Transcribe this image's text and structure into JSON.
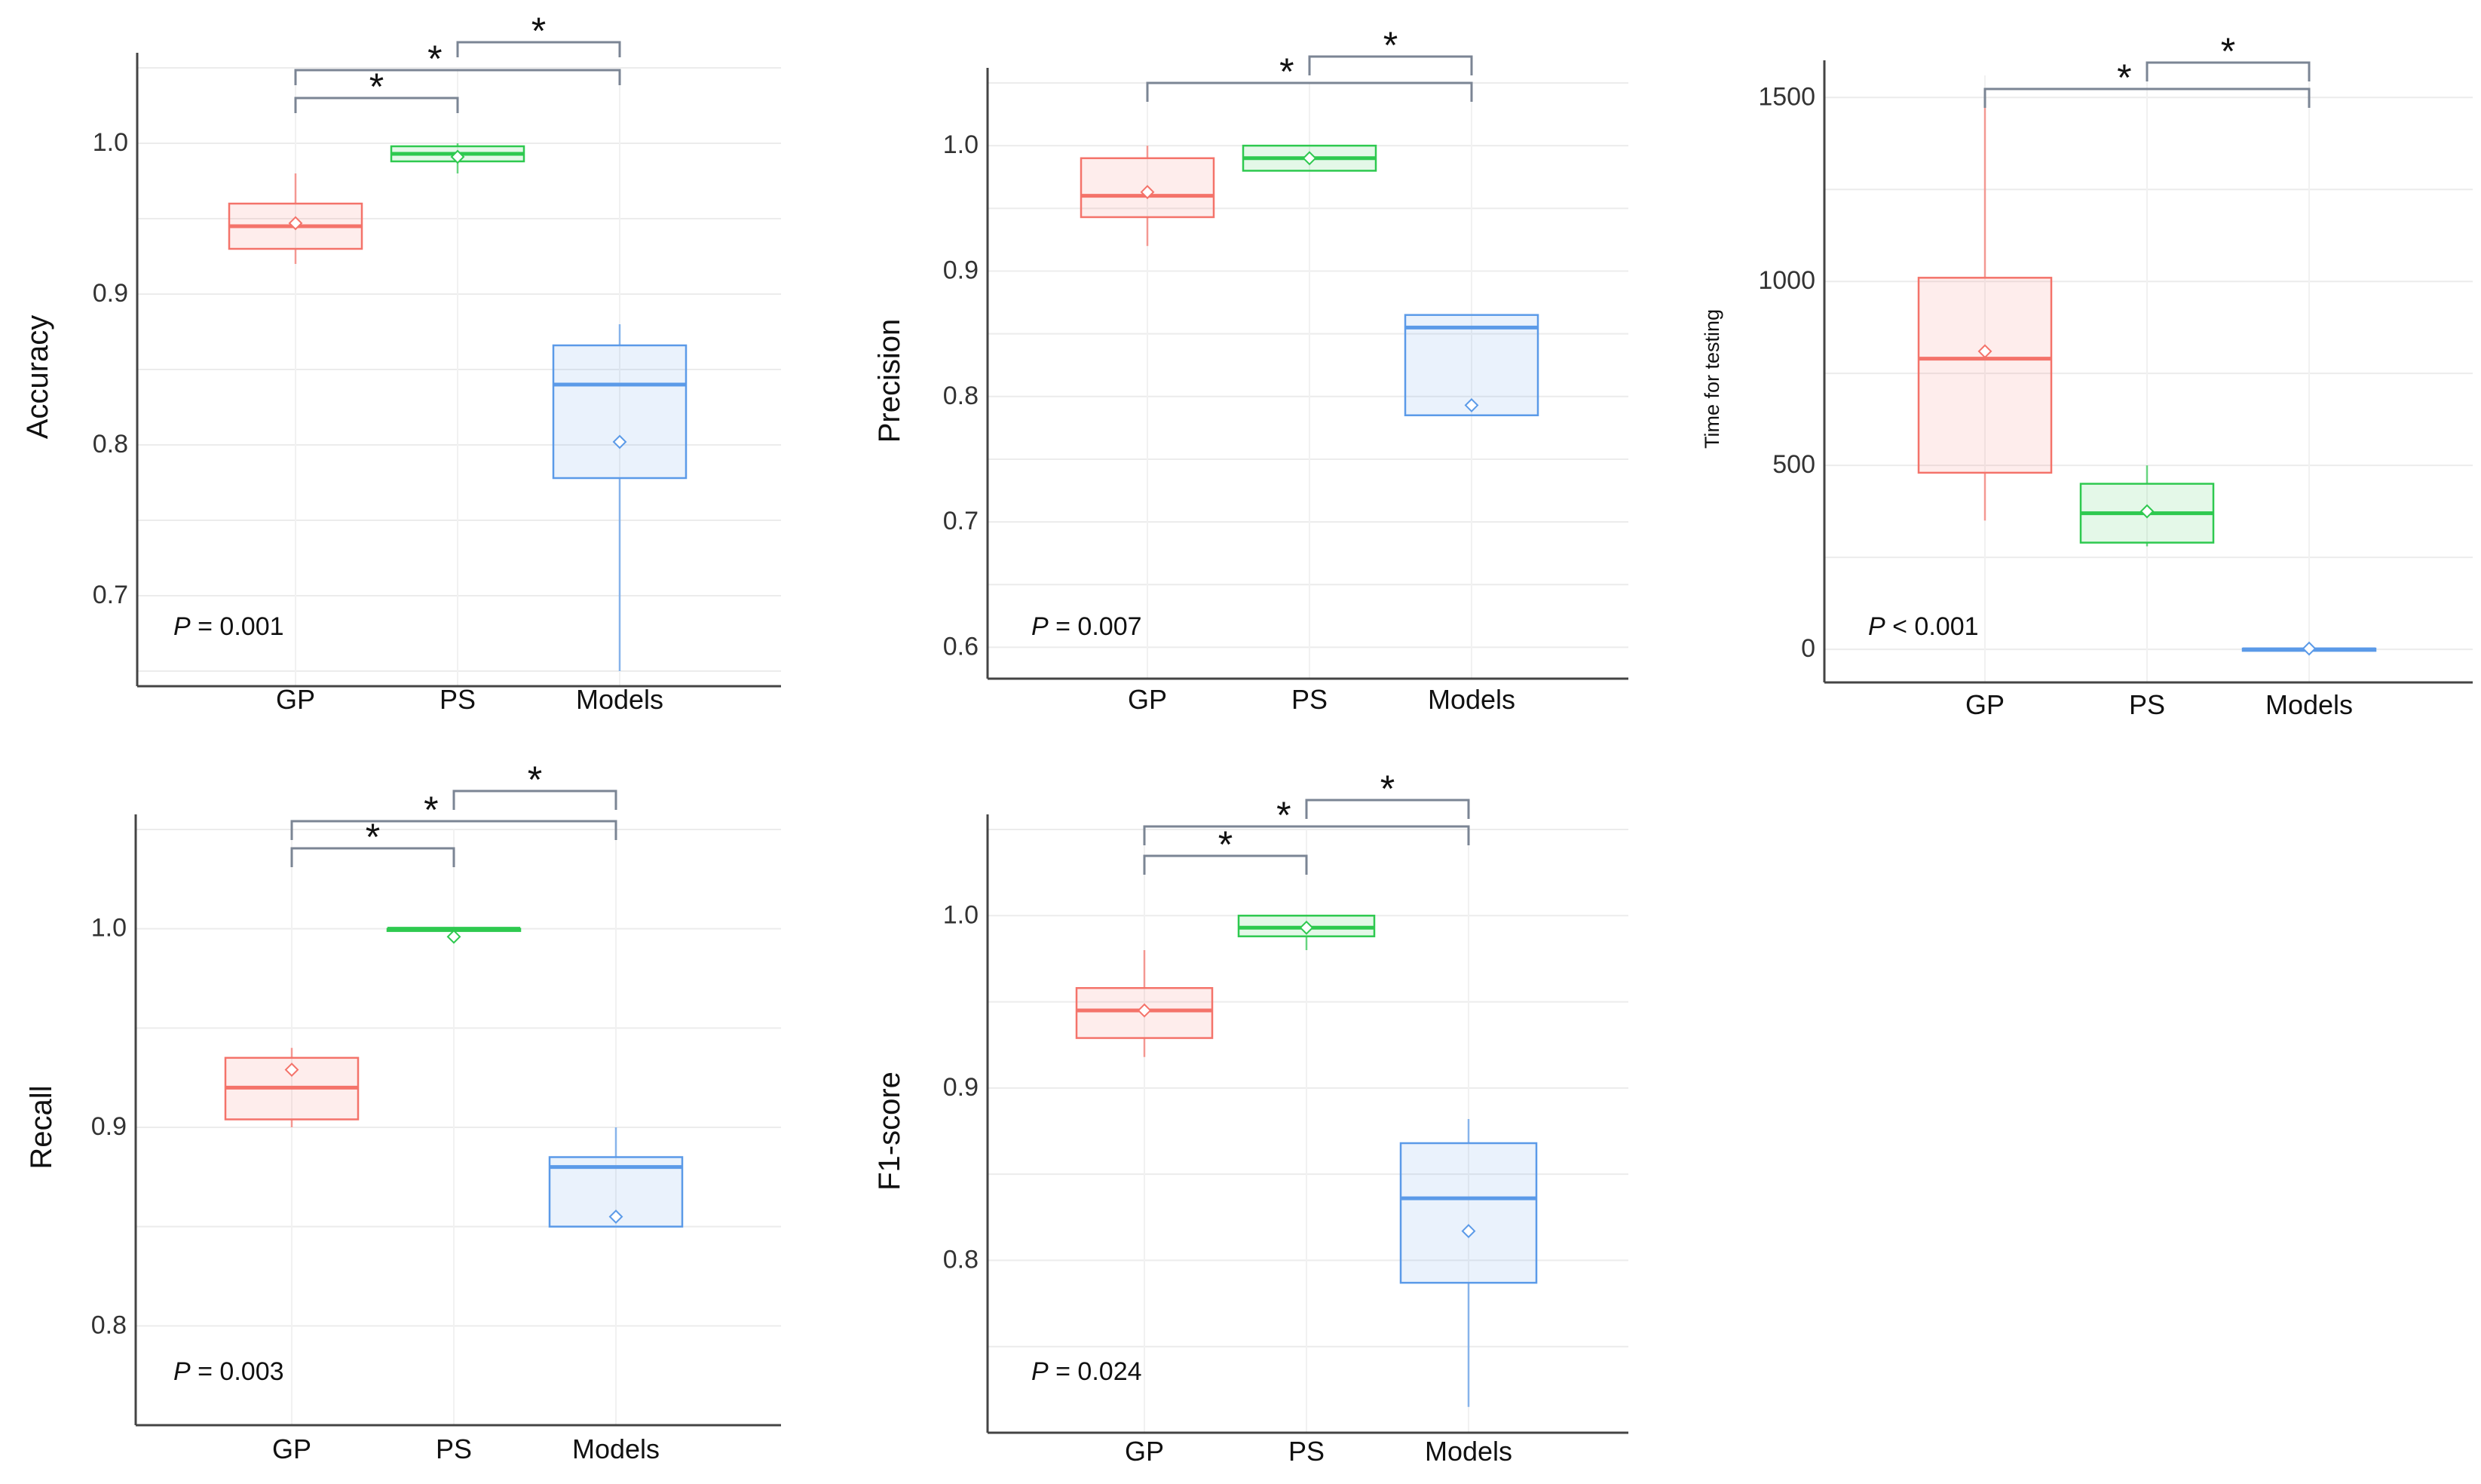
{
  "colors": {
    "GP": "#f4736a",
    "PS": "#2ec94f",
    "Models": "#5b9ae8",
    "grid": "#ececec",
    "axis": "#444444",
    "bracket": "#7b8594"
  },
  "chart_data": [
    {
      "type": "box",
      "ylabel": "Accuracy",
      "categories": [
        "GP",
        "PS",
        "Models"
      ],
      "ylim": [
        0.64,
        1.05
      ],
      "yticks": [
        0.7,
        0.8,
        0.9,
        1.0
      ],
      "ytick_labels": [
        "0.7",
        "0.8",
        "0.9",
        "1.0"
      ],
      "series": [
        {
          "category": "GP",
          "whisker_low": 0.92,
          "q1": 0.93,
          "median": 0.945,
          "q3": 0.96,
          "whisker_high": 0.98,
          "mean": 0.947
        },
        {
          "category": "PS",
          "whisker_low": 0.98,
          "q1": 0.988,
          "median": 0.993,
          "q3": 0.998,
          "whisker_high": 1.0,
          "mean": 0.991
        },
        {
          "category": "Models",
          "whisker_low": 0.65,
          "q1": 0.778,
          "median": 0.84,
          "q3": 0.866,
          "whisker_high": 0.88,
          "mean": 0.802
        }
      ],
      "p_value": {
        "symbol": "P",
        "text": " = 0.001"
      },
      "significance": [
        {
          "from": "GP",
          "to": "PS",
          "label": "*"
        },
        {
          "from": "GP",
          "to": "Models",
          "label": "*"
        },
        {
          "from": "PS",
          "to": "Models",
          "label": "*"
        }
      ]
    },
    {
      "type": "box",
      "ylabel": "Precision",
      "categories": [
        "GP",
        "PS",
        "Models"
      ],
      "ylim": [
        0.575,
        1.05
      ],
      "yticks": [
        0.6,
        0.7,
        0.8,
        0.9,
        1.0
      ],
      "ytick_labels": [
        "0.6",
        "0.7",
        "0.8",
        "0.9",
        "1.0"
      ],
      "series": [
        {
          "category": "GP",
          "whisker_low": 0.92,
          "q1": 0.943,
          "median": 0.96,
          "q3": 0.99,
          "whisker_high": 1.0,
          "mean": 0.963
        },
        {
          "category": "PS",
          "whisker_low": 0.98,
          "q1": 0.98,
          "median": 0.99,
          "q3": 1.0,
          "whisker_high": 1.0,
          "mean": 0.99
        },
        {
          "category": "Models",
          "whisker_low": 0.785,
          "q1": 0.785,
          "median": 0.855,
          "q3": 0.865,
          "whisker_high": 0.865,
          "mean": 0.793
        }
      ],
      "p_value": {
        "symbol": "P",
        "text": " = 0.007"
      },
      "significance": [
        {
          "from": "GP",
          "to": "Models",
          "label": "*"
        },
        {
          "from": "PS",
          "to": "Models",
          "label": "*"
        }
      ]
    },
    {
      "type": "box",
      "ylabel": "Time for testing",
      "categories": [
        "GP",
        "PS",
        "Models"
      ],
      "ylim": [
        -90,
        1560
      ],
      "yticks": [
        0,
        500,
        1000,
        1500
      ],
      "ytick_labels": [
        "0",
        "500",
        "1000",
        "1500"
      ],
      "series": [
        {
          "category": "GP",
          "whisker_low": 350,
          "q1": 480,
          "median": 790,
          "q3": 1010,
          "whisker_high": 1480,
          "mean": 810
        },
        {
          "category": "PS",
          "whisker_low": 280,
          "q1": 290,
          "median": 370,
          "q3": 450,
          "whisker_high": 500,
          "mean": 375
        },
        {
          "category": "Models",
          "whisker_low": 0,
          "q1": 0,
          "median": 0,
          "q3": 2,
          "whisker_high": 2,
          "mean": 2
        }
      ],
      "p_value": {
        "symbol": "P",
        "text": " < 0.001"
      },
      "significance": [
        {
          "from": "GP",
          "to": "Models",
          "label": "*"
        },
        {
          "from": "PS",
          "to": "Models",
          "label": "*"
        }
      ]
    },
    {
      "type": "box",
      "ylabel": "Recall",
      "categories": [
        "GP",
        "PS",
        "Models"
      ],
      "ylim": [
        0.75,
        1.05
      ],
      "yticks": [
        0.8,
        0.9,
        1.0
      ],
      "ytick_labels": [
        "0.8",
        "0.9",
        "1.0"
      ],
      "series": [
        {
          "category": "GP",
          "whisker_low": 0.9,
          "q1": 0.904,
          "median": 0.92,
          "q3": 0.935,
          "whisker_high": 0.94,
          "mean": 0.929
        },
        {
          "category": "PS",
          "whisker_low": 1.0,
          "q1": 1.0,
          "median": 1.0,
          "q3": 1.0,
          "whisker_high": 1.0,
          "mean": 0.996
        },
        {
          "category": "Models",
          "whisker_low": 0.85,
          "q1": 0.85,
          "median": 0.88,
          "q3": 0.885,
          "whisker_high": 0.9,
          "mean": 0.855
        }
      ],
      "p_value": {
        "symbol": "P",
        "text": " = 0.003"
      },
      "significance": [
        {
          "from": "GP",
          "to": "PS",
          "label": "*"
        },
        {
          "from": "GP",
          "to": "Models",
          "label": "*"
        },
        {
          "from": "PS",
          "to": "Models",
          "label": "*"
        }
      ]
    },
    {
      "type": "box",
      "ylabel": "F1-score",
      "categories": [
        "GP",
        "PS",
        "Models"
      ],
      "ylim": [
        0.7,
        1.05
      ],
      "yticks": [
        0.8,
        0.9,
        1.0
      ],
      "ytick_labels": [
        "0.8",
        "0.9",
        "1.0"
      ],
      "series": [
        {
          "category": "GP",
          "whisker_low": 0.918,
          "q1": 0.929,
          "median": 0.945,
          "q3": 0.958,
          "whisker_high": 0.98,
          "mean": 0.945
        },
        {
          "category": "PS",
          "whisker_low": 0.98,
          "q1": 0.988,
          "median": 0.993,
          "q3": 1.0,
          "whisker_high": 1.0,
          "mean": 0.993
        },
        {
          "category": "Models",
          "whisker_low": 0.715,
          "q1": 0.787,
          "median": 0.836,
          "q3": 0.868,
          "whisker_high": 0.882,
          "mean": 0.817
        }
      ],
      "p_value": {
        "symbol": "P",
        "text": " = 0.024"
      },
      "significance": [
        {
          "from": "GP",
          "to": "PS",
          "label": "*"
        },
        {
          "from": "GP",
          "to": "Models",
          "label": "*"
        },
        {
          "from": "PS",
          "to": "Models",
          "label": "*"
        }
      ]
    }
  ]
}
